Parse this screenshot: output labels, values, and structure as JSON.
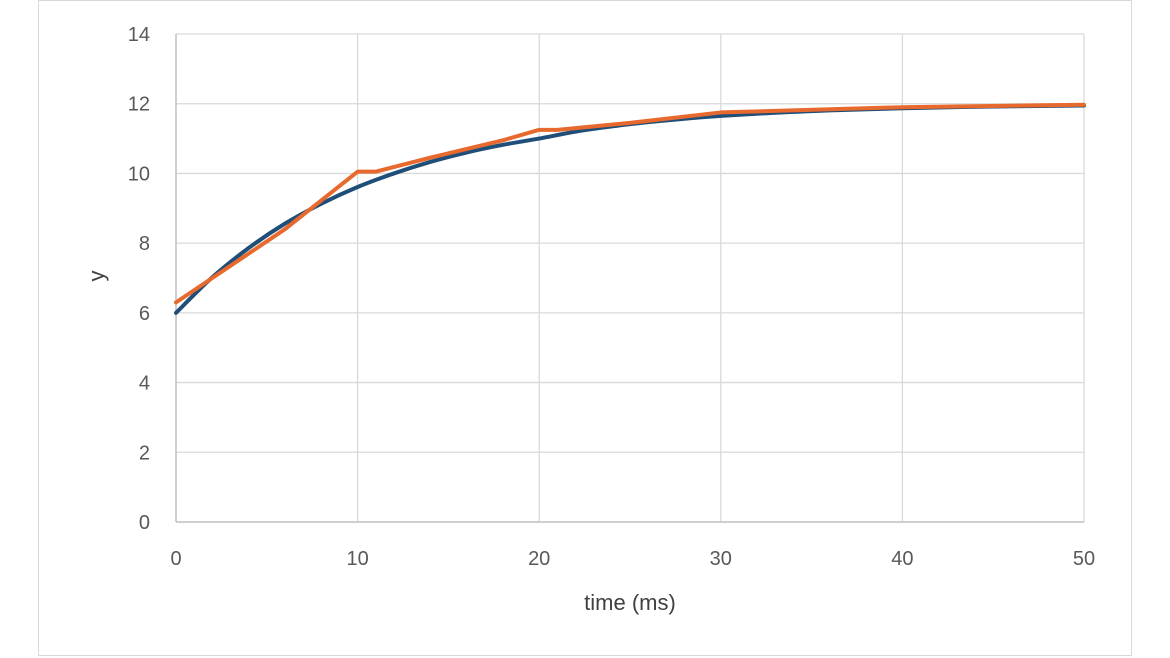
{
  "chart_data": {
    "type": "line",
    "title": "",
    "xlabel": "time (ms)",
    "ylabel": "y",
    "xlim": [
      0,
      50
    ],
    "ylim": [
      0,
      14
    ],
    "x_ticks": [
      "0",
      "10",
      "20",
      "30",
      "40",
      "50"
    ],
    "y_ticks": [
      "0",
      "2",
      "4",
      "6",
      "8",
      "10",
      "12",
      "14"
    ],
    "grid": true,
    "legend": "none",
    "series": [
      {
        "color": "#1f4e79",
        "style": "smooth",
        "points": [
          [
            0,
            6.0
          ],
          [
            2,
            7.02
          ],
          [
            4,
            7.86
          ],
          [
            6,
            8.56
          ],
          [
            8,
            9.13
          ],
          [
            10,
            9.61
          ],
          [
            12,
            10.0
          ],
          [
            14,
            10.33
          ],
          [
            16,
            10.6
          ],
          [
            18,
            10.82
          ],
          [
            20,
            11.0
          ],
          [
            22,
            11.2
          ],
          [
            24,
            11.35
          ],
          [
            26,
            11.47
          ],
          [
            28,
            11.57
          ],
          [
            30,
            11.65
          ],
          [
            33,
            11.74
          ],
          [
            36,
            11.81
          ],
          [
            40,
            11.87
          ],
          [
            45,
            11.92
          ],
          [
            50,
            11.95
          ]
        ]
      },
      {
        "color": "#e8692d",
        "style": "segments",
        "points": [
          [
            0,
            6.3
          ],
          [
            2,
            7.0
          ],
          [
            6,
            8.4
          ],
          [
            10,
            10.05
          ],
          [
            11,
            10.05
          ],
          [
            14,
            10.45
          ],
          [
            18,
            10.95
          ],
          [
            20,
            11.25
          ],
          [
            21,
            11.25
          ],
          [
            25,
            11.45
          ],
          [
            30,
            11.75
          ],
          [
            40,
            11.9
          ],
          [
            50,
            11.97
          ]
        ]
      }
    ]
  }
}
